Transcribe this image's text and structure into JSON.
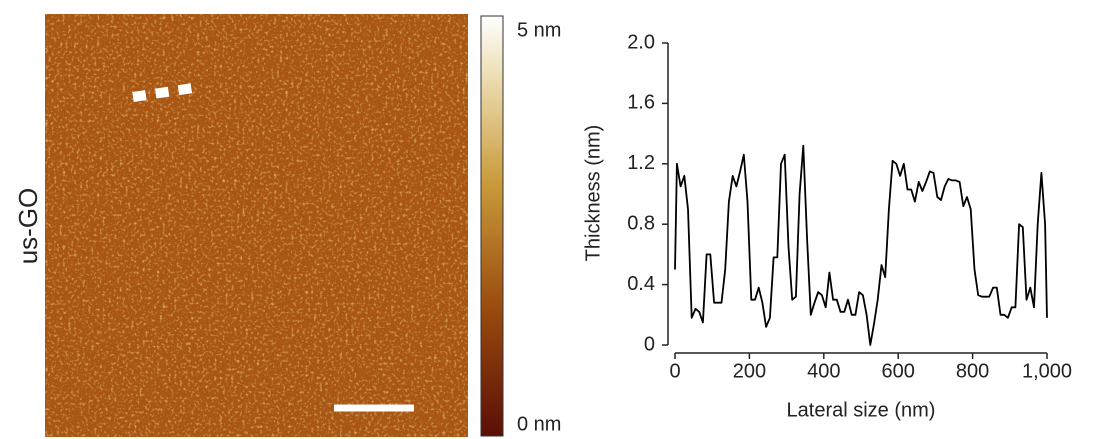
{
  "image": {
    "label": "us-GO",
    "colorbar_max": "5 nm",
    "colorbar_min": "0 nm"
  },
  "chart_data": {
    "type": "line",
    "xlabel": "Lateral size (nm)",
    "ylabel": "Thickness (nm)",
    "x": [
      0,
      5,
      15,
      25,
      35,
      45,
      55,
      65,
      75,
      85,
      95,
      105,
      115,
      125,
      135,
      145,
      155,
      165,
      175,
      185,
      195,
      205,
      215,
      225,
      235,
      245,
      255,
      265,
      275,
      285,
      295,
      305,
      315,
      325,
      335,
      345,
      355,
      365,
      375,
      385,
      395,
      405,
      415,
      425,
      435,
      445,
      455,
      465,
      475,
      485,
      495,
      505,
      515,
      525,
      535,
      545,
      555,
      565,
      575,
      585,
      595,
      605,
      615,
      625,
      635,
      645,
      655,
      665,
      675,
      685,
      695,
      705,
      715,
      725,
      735,
      745,
      755,
      765,
      775,
      785,
      795,
      805,
      815,
      825,
      835,
      845,
      855,
      865,
      875,
      885,
      895,
      905,
      915,
      925,
      935,
      945,
      955,
      965,
      975,
      985,
      995,
      1000
    ],
    "values": [
      0.5,
      1.2,
      1.05,
      1.12,
      0.9,
      0.18,
      0.24,
      0.22,
      0.15,
      0.6,
      0.6,
      0.28,
      0.28,
      0.28,
      0.5,
      0.95,
      1.12,
      1.05,
      1.15,
      1.26,
      0.95,
      0.3,
      0.3,
      0.38,
      0.28,
      0.12,
      0.18,
      0.58,
      0.58,
      1.2,
      1.26,
      0.65,
      0.3,
      0.32,
      1.0,
      1.32,
      0.7,
      0.2,
      0.28,
      0.35,
      0.33,
      0.25,
      0.48,
      0.3,
      0.3,
      0.22,
      0.22,
      0.3,
      0.2,
      0.2,
      0.35,
      0.33,
      0.2,
      0.0,
      0.14,
      0.3,
      0.53,
      0.45,
      0.9,
      1.22,
      1.2,
      1.12,
      1.2,
      1.03,
      1.03,
      0.95,
      1.08,
      1.02,
      1.08,
      1.15,
      1.14,
      0.98,
      0.96,
      1.05,
      1.1,
      1.09,
      1.09,
      1.08,
      0.92,
      0.98,
      0.9,
      0.5,
      0.33,
      0.32,
      0.32,
      0.32,
      0.38,
      0.38,
      0.2,
      0.2,
      0.18,
      0.25,
      0.25,
      0.8,
      0.78,
      0.3,
      0.38,
      0.25,
      0.8,
      1.14,
      0.8,
      0.18
    ],
    "color": "#000000",
    "xlim": [
      0,
      1000
    ],
    "ylim": [
      0,
      2
    ],
    "xticks": [
      0,
      200,
      400,
      600,
      800,
      {
        "value": 1000,
        "label": "1,000"
      }
    ],
    "yticks": [
      0,
      0.4,
      0.8,
      1.2,
      1.6,
      {
        "value": 2,
        "label": "2.0"
      }
    ]
  }
}
